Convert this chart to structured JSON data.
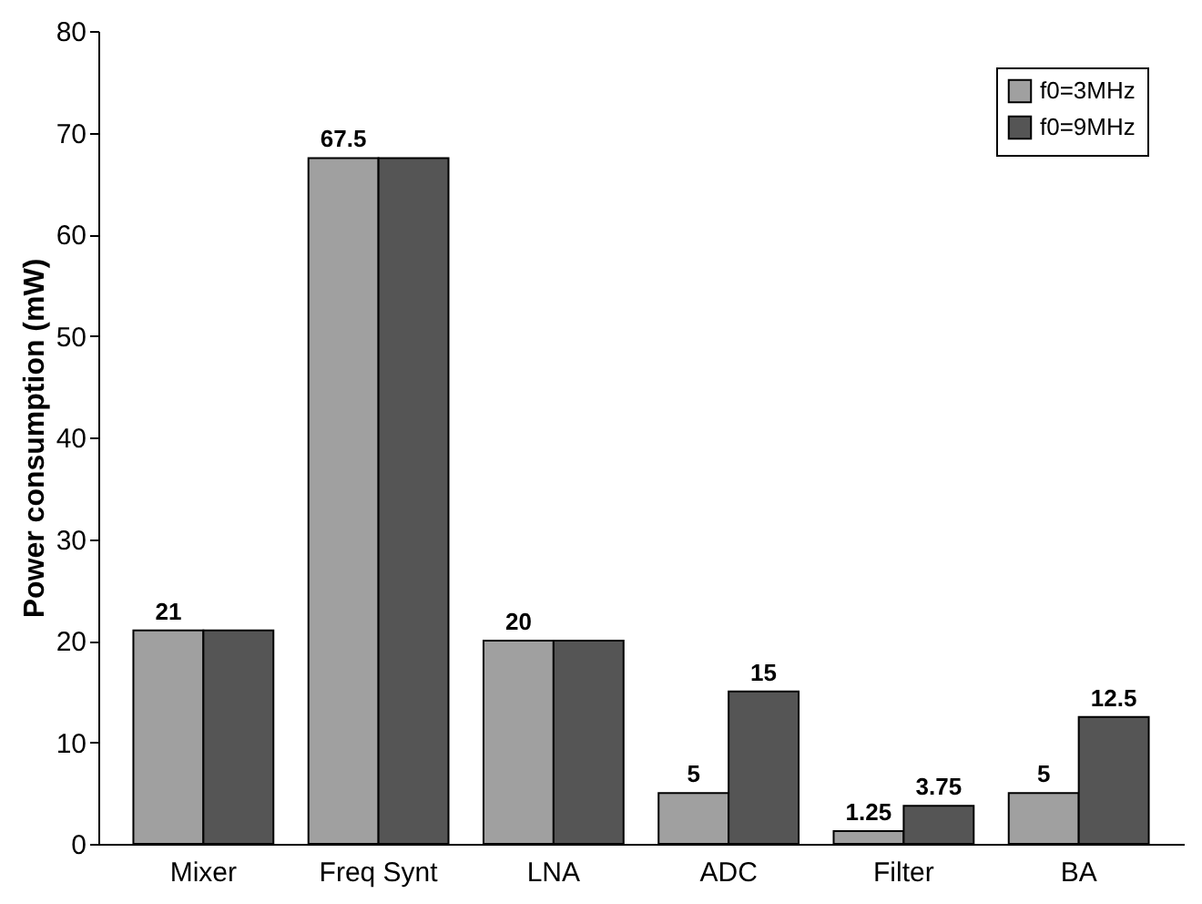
{
  "chart_data": {
    "type": "bar",
    "ylabel": "Power consumption (mW)",
    "categories": [
      "Mixer",
      "Freq Synt",
      "LNA",
      "ADC",
      "Filter",
      "BA"
    ],
    "series": [
      {
        "name": "f0=3MHz",
        "color": "#a0a0a0",
        "values": [
          21,
          67.5,
          20,
          5,
          1.25,
          5
        ],
        "value_labels": [
          "21",
          "67.5",
          "20",
          "5",
          "1.25",
          "5"
        ]
      },
      {
        "name": "f0=9MHz",
        "color": "#555555",
        "values": [
          21,
          67.5,
          20,
          15,
          3.75,
          12.5
        ],
        "value_labels": [
          null,
          null,
          null,
          "15",
          "3.75",
          "12.5"
        ]
      }
    ],
    "ylim": [
      0,
      80
    ],
    "yticks": [
      0,
      10,
      20,
      30,
      40,
      50,
      60,
      70,
      80
    ],
    "grid": false,
    "legend": "top right"
  }
}
